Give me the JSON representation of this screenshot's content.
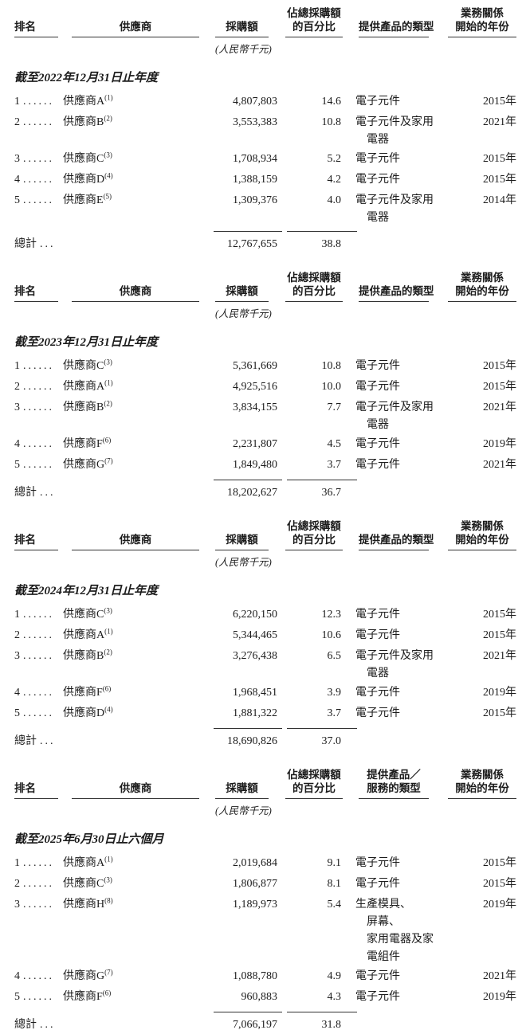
{
  "unit_label": "(人民幣千元)",
  "total_label": "總計",
  "total_dots": "...",
  "rank_dots": "......",
  "tables": [
    {
      "period": "截至2022年12月31日止年度",
      "headers": [
        {
          "top": "",
          "bottom": "排名"
        },
        {
          "top": "",
          "bottom": "供應商"
        },
        {
          "top": "",
          "bottom": "採購額"
        },
        {
          "top": "佔總採購額",
          "bottom": "的百分比"
        },
        {
          "top": "",
          "bottom": "提供產品的類型"
        },
        {
          "top": "業務關係",
          "bottom": "開始的年份"
        }
      ],
      "rows": [
        {
          "rank": "1",
          "supplier": "供應商A",
          "note": "(1)",
          "amount": "4,807,803",
          "pct": "14.6",
          "products": [
            "電子元件"
          ],
          "year": "2015年"
        },
        {
          "rank": "2",
          "supplier": "供應商B",
          "note": "(2)",
          "amount": "3,553,383",
          "pct": "10.8",
          "products": [
            "電子元件及家用",
            "電器"
          ],
          "year": "2021年"
        },
        {
          "rank": "3",
          "supplier": "供應商C",
          "note": "(3)",
          "amount": "1,708,934",
          "pct": "5.2",
          "products": [
            "電子元件"
          ],
          "year": "2015年"
        },
        {
          "rank": "4",
          "supplier": "供應商D",
          "note": "(4)",
          "amount": "1,388,159",
          "pct": "4.2",
          "products": [
            "電子元件"
          ],
          "year": "2015年"
        },
        {
          "rank": "5",
          "supplier": "供應商E",
          "note": "(5)",
          "amount": "1,309,376",
          "pct": "4.0",
          "products": [
            "電子元件及家用",
            "電器"
          ],
          "year": "2014年"
        }
      ],
      "total_amount": "12,767,655",
      "total_pct": "38.8"
    },
    {
      "period": "截至2023年12月31日止年度",
      "headers": [
        {
          "top": "",
          "bottom": "排名"
        },
        {
          "top": "",
          "bottom": "供應商"
        },
        {
          "top": "",
          "bottom": "採購額"
        },
        {
          "top": "佔總採購額",
          "bottom": "的百分比"
        },
        {
          "top": "",
          "bottom": "提供產品的類型"
        },
        {
          "top": "業務關係",
          "bottom": "開始的年份"
        }
      ],
      "rows": [
        {
          "rank": "1",
          "supplier": "供應商C",
          "note": "(3)",
          "amount": "5,361,669",
          "pct": "10.8",
          "products": [
            "電子元件"
          ],
          "year": "2015年"
        },
        {
          "rank": "2",
          "supplier": "供應商A",
          "note": "(1)",
          "amount": "4,925,516",
          "pct": "10.0",
          "products": [
            "電子元件"
          ],
          "year": "2015年"
        },
        {
          "rank": "3",
          "supplier": "供應商B",
          "note": "(2)",
          "amount": "3,834,155",
          "pct": "7.7",
          "products": [
            "電子元件及家用",
            "電器"
          ],
          "year": "2021年"
        },
        {
          "rank": "4",
          "supplier": "供應商F",
          "note": "(6)",
          "amount": "2,231,807",
          "pct": "4.5",
          "products": [
            "電子元件"
          ],
          "year": "2019年"
        },
        {
          "rank": "5",
          "supplier": "供應商G",
          "note": "(7)",
          "amount": "1,849,480",
          "pct": "3.7",
          "products": [
            "電子元件"
          ],
          "year": "2021年"
        }
      ],
      "total_amount": "18,202,627",
      "total_pct": "36.7"
    },
    {
      "period": "截至2024年12月31日止年度",
      "headers": [
        {
          "top": "",
          "bottom": "排名"
        },
        {
          "top": "",
          "bottom": "供應商"
        },
        {
          "top": "",
          "bottom": "採購額"
        },
        {
          "top": "佔總採購額",
          "bottom": "的百分比"
        },
        {
          "top": "",
          "bottom": "提供產品的類型"
        },
        {
          "top": "業務關係",
          "bottom": "開始的年份"
        }
      ],
      "rows": [
        {
          "rank": "1",
          "supplier": "供應商C",
          "note": "(3)",
          "amount": "6,220,150",
          "pct": "12.3",
          "products": [
            "電子元件"
          ],
          "year": "2015年"
        },
        {
          "rank": "2",
          "supplier": "供應商A",
          "note": "(1)",
          "amount": "5,344,465",
          "pct": "10.6",
          "products": [
            "電子元件"
          ],
          "year": "2015年"
        },
        {
          "rank": "3",
          "supplier": "供應商B",
          "note": "(2)",
          "amount": "3,276,438",
          "pct": "6.5",
          "products": [
            "電子元件及家用",
            "電器"
          ],
          "year": "2021年"
        },
        {
          "rank": "4",
          "supplier": "供應商F",
          "note": "(6)",
          "amount": "1,968,451",
          "pct": "3.9",
          "products": [
            "電子元件"
          ],
          "year": "2019年"
        },
        {
          "rank": "5",
          "supplier": "供應商D",
          "note": "(4)",
          "amount": "1,881,322",
          "pct": "3.7",
          "products": [
            "電子元件"
          ],
          "year": "2015年"
        }
      ],
      "total_amount": "18,690,826",
      "total_pct": "37.0"
    },
    {
      "period": "截至2025年6月30日止六個月",
      "headers": [
        {
          "top": "",
          "bottom": "排名"
        },
        {
          "top": "",
          "bottom": "供應商"
        },
        {
          "top": "",
          "bottom": "採購額"
        },
        {
          "top": "佔總採購額",
          "bottom": "的百分比"
        },
        {
          "top": "提供產品／",
          "bottom": "服務的類型"
        },
        {
          "top": "業務關係",
          "bottom": "開始的年份"
        }
      ],
      "rows": [
        {
          "rank": "1",
          "supplier": "供應商A",
          "note": "(1)",
          "amount": "2,019,684",
          "pct": "9.1",
          "products": [
            "電子元件"
          ],
          "year": "2015年"
        },
        {
          "rank": "2",
          "supplier": "供應商C",
          "note": "(3)",
          "amount": "1,806,877",
          "pct": "8.1",
          "products": [
            "電子元件"
          ],
          "year": "2015年"
        },
        {
          "rank": "3",
          "supplier": "供應商H",
          "note": "(8)",
          "amount": "1,189,973",
          "pct": "5.4",
          "products": [
            "生產模具、",
            "屏幕、",
            "家用電器及家",
            "電組件"
          ],
          "year": "2019年"
        },
        {
          "rank": "4",
          "supplier": "供應商G",
          "note": "(7)",
          "amount": "1,088,780",
          "pct": "4.9",
          "products": [
            "電子元件"
          ],
          "year": "2021年"
        },
        {
          "rank": "5",
          "supplier": "供應商F",
          "note": "(6)",
          "amount": "960,883",
          "pct": "4.3",
          "products": [
            "電子元件"
          ],
          "year": "2019年"
        }
      ],
      "total_amount": "7,066,197",
      "total_pct": "31.8"
    }
  ]
}
